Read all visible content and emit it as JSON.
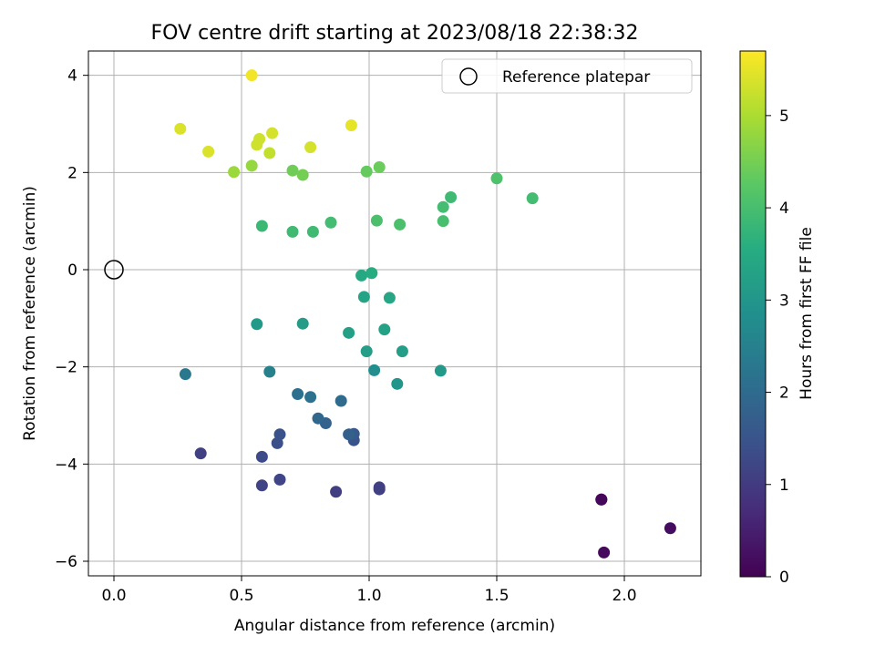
{
  "chart_data": {
    "type": "scatter",
    "title": "FOV centre drift starting at 2023/08/18 22:38:32",
    "xlabel": "Angular distance from reference (arcmin)",
    "ylabel": "Rotation from reference (arcmin)",
    "xlim": [
      -0.1,
      2.3
    ],
    "ylim": [
      -6.3,
      4.5
    ],
    "xticks": [
      0.0,
      0.5,
      1.0,
      1.5,
      2.0
    ],
    "xtick_labels": [
      "0.0",
      "0.5",
      "1.0",
      "1.5",
      "2.0"
    ],
    "yticks": [
      -6,
      -4,
      -2,
      0,
      2,
      4
    ],
    "ytick_labels": [
      "−6",
      "−4",
      "−2",
      "0",
      "2",
      "4"
    ],
    "grid": true,
    "colormap": "viridis",
    "colorbar": {
      "label": "Hours from first FF file",
      "range": [
        0,
        5.7
      ],
      "ticks": [
        0,
        1,
        2,
        3,
        4,
        5
      ],
      "tick_labels": [
        "0",
        "1",
        "2",
        "3",
        "4",
        "5"
      ]
    },
    "legend": {
      "label": "Reference platepar",
      "position": "top-right"
    },
    "reference_point": {
      "x": 0.0,
      "y": 0.0
    },
    "points": [
      {
        "x": 1.91,
        "y": -4.73,
        "c": 0.05
      },
      {
        "x": 1.91,
        "y": -4.73,
        "c": 0.1
      },
      {
        "x": 1.92,
        "y": -5.82,
        "c": 0.15
      },
      {
        "x": 2.18,
        "y": -5.32,
        "c": 0.2
      },
      {
        "x": 0.87,
        "y": -4.57,
        "c": 1.05
      },
      {
        "x": 1.04,
        "y": -4.52,
        "c": 1.1
      },
      {
        "x": 1.04,
        "y": -4.48,
        "c": 1.1
      },
      {
        "x": 0.58,
        "y": -4.44,
        "c": 1.15
      },
      {
        "x": 0.65,
        "y": -4.32,
        "c": 1.2
      },
      {
        "x": 0.34,
        "y": -3.78,
        "c": 1.1
      },
      {
        "x": 0.58,
        "y": -3.85,
        "c": 1.3
      },
      {
        "x": 0.64,
        "y": -3.57,
        "c": 1.4
      },
      {
        "x": 0.65,
        "y": -3.39,
        "c": 1.45
      },
      {
        "x": 0.94,
        "y": -3.51,
        "c": 1.5
      },
      {
        "x": 0.94,
        "y": -3.38,
        "c": 1.6
      },
      {
        "x": 0.92,
        "y": -3.39,
        "c": 1.75
      },
      {
        "x": 0.83,
        "y": -3.16,
        "c": 1.8
      },
      {
        "x": 0.8,
        "y": -3.06,
        "c": 1.9
      },
      {
        "x": 0.89,
        "y": -2.7,
        "c": 2.0
      },
      {
        "x": 0.72,
        "y": -2.56,
        "c": 2.1
      },
      {
        "x": 0.77,
        "y": -2.62,
        "c": 2.15
      },
      {
        "x": 0.28,
        "y": -2.15,
        "c": 2.3
      },
      {
        "x": 0.61,
        "y": -2.1,
        "c": 2.5
      },
      {
        "x": 1.02,
        "y": -2.07,
        "c": 2.8
      },
      {
        "x": 1.11,
        "y": -2.35,
        "c": 3.0
      },
      {
        "x": 1.28,
        "y": -2.08,
        "c": 3.1
      },
      {
        "x": 0.99,
        "y": -1.68,
        "c": 3.2
      },
      {
        "x": 1.13,
        "y": -1.68,
        "c": 3.2
      },
      {
        "x": 0.92,
        "y": -1.3,
        "c": 3.25
      },
      {
        "x": 1.06,
        "y": -1.23,
        "c": 3.3
      },
      {
        "x": 0.56,
        "y": -1.12,
        "c": 3.1
      },
      {
        "x": 0.74,
        "y": -1.11,
        "c": 3.15
      },
      {
        "x": 0.98,
        "y": -0.56,
        "c": 3.35
      },
      {
        "x": 1.08,
        "y": -0.58,
        "c": 3.4
      },
      {
        "x": 0.97,
        "y": -0.12,
        "c": 3.45
      },
      {
        "x": 1.01,
        "y": -0.07,
        "c": 3.55
      },
      {
        "x": 0.58,
        "y": 0.9,
        "c": 3.85
      },
      {
        "x": 0.7,
        "y": 0.78,
        "c": 3.9
      },
      {
        "x": 0.78,
        "y": 0.78,
        "c": 3.9
      },
      {
        "x": 0.85,
        "y": 0.97,
        "c": 3.95
      },
      {
        "x": 1.03,
        "y": 1.01,
        "c": 4.05
      },
      {
        "x": 1.12,
        "y": 0.93,
        "c": 4.05
      },
      {
        "x": 1.29,
        "y": 1.0,
        "c": 4.0
      },
      {
        "x": 1.29,
        "y": 1.29,
        "c": 3.95
      },
      {
        "x": 1.32,
        "y": 1.49,
        "c": 3.9
      },
      {
        "x": 1.64,
        "y": 1.47,
        "c": 3.95
      },
      {
        "x": 1.5,
        "y": 1.88,
        "c": 4.1
      },
      {
        "x": 0.99,
        "y": 2.02,
        "c": 4.35
      },
      {
        "x": 1.04,
        "y": 2.11,
        "c": 4.4
      },
      {
        "x": 0.7,
        "y": 2.04,
        "c": 4.45
      },
      {
        "x": 0.74,
        "y": 1.95,
        "c": 4.5
      },
      {
        "x": 0.47,
        "y": 2.01,
        "c": 4.85
      },
      {
        "x": 0.54,
        "y": 2.14,
        "c": 4.8
      },
      {
        "x": 0.61,
        "y": 2.4,
        "c": 5.2
      },
      {
        "x": 0.37,
        "y": 2.43,
        "c": 5.4
      },
      {
        "x": 0.56,
        "y": 2.57,
        "c": 5.3
      },
      {
        "x": 0.57,
        "y": 2.69,
        "c": 5.3
      },
      {
        "x": 0.62,
        "y": 2.81,
        "c": 5.35
      },
      {
        "x": 0.77,
        "y": 2.52,
        "c": 5.35
      },
      {
        "x": 0.26,
        "y": 2.9,
        "c": 5.4
      },
      {
        "x": 0.93,
        "y": 2.97,
        "c": 5.5
      },
      {
        "x": 0.54,
        "y": 4.0,
        "c": 5.6
      }
    ]
  }
}
